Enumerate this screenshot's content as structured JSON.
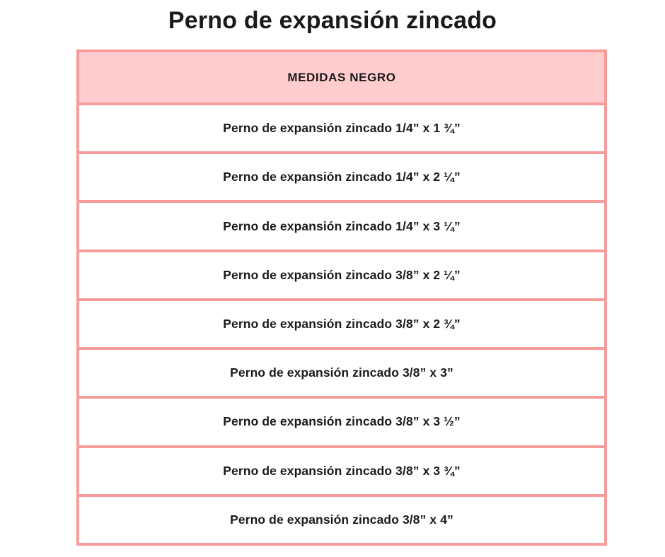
{
  "page": {
    "title": "Perno de expansión zincado"
  },
  "table": {
    "header": "MEDIDAS NEGRO",
    "rows": [
      "Perno de expansión zincado 1/4” x 1 ¾”",
      "Perno de expansión zincado 1/4” x 2 ¼”",
      "Perno de expansión zincado 1/4” x 3 ¼”",
      "Perno de expansión zincado 3/8” x 2 ¼”",
      "Perno de expansión zincado 3/8” x 2 ¾”",
      "Perno de expansión zincado 3/8” x 3”",
      "Perno de expansión zincado 3/8” x 3 ½”",
      "Perno de expansión zincado 3/8” x 3 ¾”",
      "Perno de expansión zincado 3/8” x 4”"
    ]
  },
  "colors": {
    "border": "#f89b9b",
    "header_background": "#ffcdcd",
    "text": "#1a1a1a",
    "background": "#ffffff"
  }
}
